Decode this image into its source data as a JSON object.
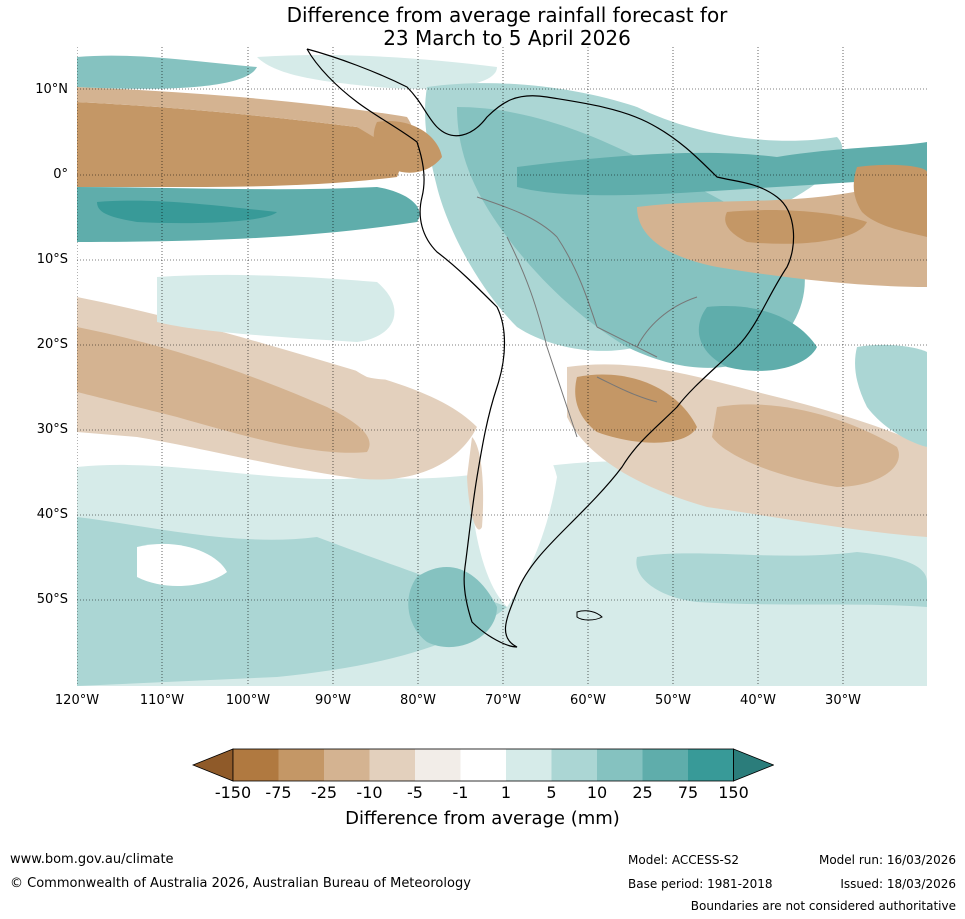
{
  "title": {
    "line1": "Difference from average rainfall forecast for",
    "line2": "23 March to 5 April 2026"
  },
  "map": {
    "lat_labels": [
      "10°N",
      "0°",
      "10°S",
      "20°S",
      "30°S",
      "40°S",
      "50°S"
    ],
    "lon_labels": [
      "120°W",
      "110°W",
      "100°W",
      "90°W",
      "80°W",
      "70°W",
      "60°W",
      "50°W",
      "40°W",
      "30°W"
    ]
  },
  "legend": {
    "tick_labels": [
      "-150",
      "-75",
      "-25",
      "-10",
      "-5",
      "-1",
      "1",
      "5",
      "10",
      "25",
      "75",
      "150"
    ],
    "colors": [
      "#8f5a29",
      "#b07940",
      "#c49766",
      "#d4b391",
      "#e3d0bd",
      "#f2ede8",
      "#ffffff",
      "#d6ebe9",
      "#abd6d4",
      "#85c2c0",
      "#5fadab",
      "#389a98",
      "#2b7d7b"
    ],
    "title": "Difference from average (mm)"
  },
  "footer": {
    "website": "www.bom.gov.au/climate",
    "copyright": "© Commonwealth of Australia 2026, Australian Bureau of Meteorology",
    "model": "Model: ACCESS-S2",
    "base_period": "Base period: 1981-2018",
    "model_run": "Model run: 16/03/2026",
    "issued": "Issued: 18/03/2026",
    "disclaimer": "Boundaries are not considered authoritative"
  }
}
